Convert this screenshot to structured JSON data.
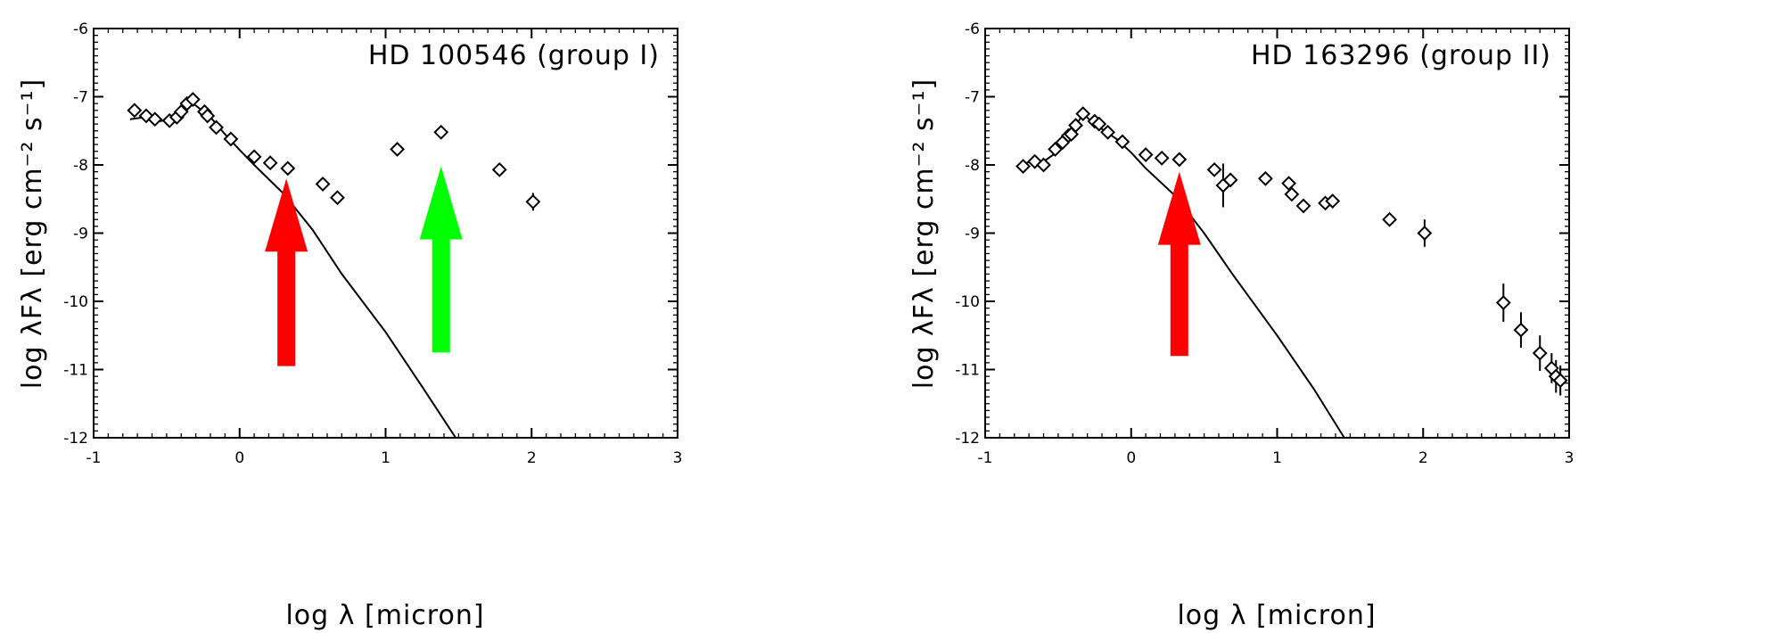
{
  "chart_data": [
    {
      "type": "scatter",
      "title": "HD 100546 (group I)",
      "xlabel": "log λ [micron]",
      "ylabel": "log λFλ [erg cm⁻² s⁻¹]",
      "xlim": [
        -1,
        3
      ],
      "ylim": [
        -12,
        -6
      ],
      "x_ticks": [
        -1,
        0,
        1,
        2,
        3
      ],
      "y_ticks": [
        -12,
        -11,
        -10,
        -9,
        -8,
        -7,
        -6
      ],
      "x_tick_labels": [
        "-1",
        "0",
        "1",
        "2",
        "3"
      ],
      "y_tick_labels": [
        "-12",
        "-11",
        "-10",
        "-9",
        "-8",
        "-7",
        "-6"
      ],
      "points": [
        {
          "x": -0.72,
          "y": -7.2
        },
        {
          "x": -0.64,
          "y": -7.28
        },
        {
          "x": -0.58,
          "y": -7.33
        },
        {
          "x": -0.48,
          "y": -7.35
        },
        {
          "x": -0.43,
          "y": -7.3
        },
        {
          "x": -0.4,
          "y": -7.22
        },
        {
          "x": -0.36,
          "y": -7.1
        },
        {
          "x": -0.32,
          "y": -7.04
        },
        {
          "x": -0.24,
          "y": -7.22
        },
        {
          "x": -0.22,
          "y": -7.28
        },
        {
          "x": -0.16,
          "y": -7.45
        },
        {
          "x": -0.06,
          "y": -7.62
        },
        {
          "x": 0.1,
          "y": -7.88
        },
        {
          "x": 0.21,
          "y": -7.97
        },
        {
          "x": 0.33,
          "y": -8.05
        },
        {
          "x": 0.57,
          "y": -8.28
        },
        {
          "x": 0.67,
          "y": -8.48
        },
        {
          "x": 1.08,
          "y": -7.77
        },
        {
          "x": 1.38,
          "y": -7.52
        },
        {
          "x": 1.78,
          "y": -8.07
        },
        {
          "x": 2.01,
          "y": -8.54,
          "yerr": 0.13
        }
      ],
      "model_curve": [
        [
          -0.75,
          -7.33
        ],
        [
          -0.65,
          -7.3
        ],
        [
          -0.58,
          -7.37
        ],
        [
          -0.5,
          -7.34
        ],
        [
          -0.45,
          -7.28
        ],
        [
          -0.4,
          -7.2
        ],
        [
          -0.35,
          -7.07
        ],
        [
          -0.3,
          -7.13
        ],
        [
          -0.2,
          -7.3
        ],
        [
          -0.1,
          -7.55
        ],
        [
          0.0,
          -7.78
        ],
        [
          0.1,
          -8.0
        ],
        [
          0.3,
          -8.42
        ],
        [
          0.5,
          -8.95
        ],
        [
          0.7,
          -9.6
        ],
        [
          1.0,
          -10.45
        ],
        [
          1.25,
          -11.25
        ],
        [
          1.48,
          -12.0
        ]
      ],
      "annotations": [
        {
          "type": "arrow",
          "color": "#ff0000",
          "x": 0.32,
          "y_from": -10.95,
          "y_to": -8.2
        },
        {
          "type": "arrow",
          "color": "#00ff00",
          "x": 1.38,
          "y_from": -10.75,
          "y_to": -8.02
        }
      ]
    },
    {
      "type": "scatter",
      "title": "HD 163296 (group II)",
      "xlabel": "log λ [micron]",
      "ylabel": "log λFλ [erg cm⁻² s⁻¹]",
      "xlim": [
        -1,
        3
      ],
      "ylim": [
        -12,
        -6
      ],
      "x_ticks": [
        -1,
        0,
        1,
        2,
        3
      ],
      "y_ticks": [
        -12,
        -11,
        -10,
        -9,
        -8,
        -7,
        -6
      ],
      "x_tick_labels": [
        "-1",
        "0",
        "1",
        "2",
        "3"
      ],
      "y_tick_labels": [
        "-12",
        "-11",
        "-10",
        "-9",
        "-8",
        "-7",
        "-6"
      ],
      "points": [
        {
          "x": -0.74,
          "y": -8.02
        },
        {
          "x": -0.66,
          "y": -7.95
        },
        {
          "x": -0.6,
          "y": -8.0
        },
        {
          "x": -0.52,
          "y": -7.77
        },
        {
          "x": -0.47,
          "y": -7.67
        },
        {
          "x": -0.43,
          "y": -7.57
        },
        {
          "x": -0.41,
          "y": -7.55
        },
        {
          "x": -0.38,
          "y": -7.42
        },
        {
          "x": -0.33,
          "y": -7.25
        },
        {
          "x": -0.25,
          "y": -7.36
        },
        {
          "x": -0.22,
          "y": -7.4
        },
        {
          "x": -0.16,
          "y": -7.52
        },
        {
          "x": -0.06,
          "y": -7.66
        },
        {
          "x": 0.1,
          "y": -7.85
        },
        {
          "x": 0.21,
          "y": -7.9
        },
        {
          "x": 0.33,
          "y": -7.92
        },
        {
          "x": 0.57,
          "y": -8.07
        },
        {
          "x": 0.63,
          "y": -8.3,
          "yerr": 0.32
        },
        {
          "x": 0.68,
          "y": -8.22
        },
        {
          "x": 0.92,
          "y": -8.2
        },
        {
          "x": 1.08,
          "y": -8.27
        },
        {
          "x": 1.1,
          "y": -8.43
        },
        {
          "x": 1.18,
          "y": -8.6
        },
        {
          "x": 1.33,
          "y": -8.56
        },
        {
          "x": 1.38,
          "y": -8.53
        },
        {
          "x": 1.77,
          "y": -8.8
        },
        {
          "x": 2.01,
          "y": -9.0,
          "yerr": 0.2
        },
        {
          "x": 2.55,
          "y": -10.02,
          "yerr": 0.28
        },
        {
          "x": 2.67,
          "y": -10.42,
          "yerr": 0.26
        },
        {
          "x": 2.8,
          "y": -10.76,
          "yerr": 0.26
        },
        {
          "x": 2.88,
          "y": -10.98,
          "yerr": 0.22
        },
        {
          "x": 2.91,
          "y": -11.1,
          "yerr": 0.24
        },
        {
          "x": 2.94,
          "y": -11.16,
          "yerr": 0.22
        }
      ],
      "model_curve": [
        [
          -0.75,
          -8.0
        ],
        [
          -0.66,
          -7.92
        ],
        [
          -0.6,
          -7.95
        ],
        [
          -0.5,
          -7.8
        ],
        [
          -0.4,
          -7.5
        ],
        [
          -0.33,
          -7.25
        ],
        [
          -0.25,
          -7.4
        ],
        [
          -0.1,
          -7.62
        ],
        [
          0.0,
          -7.82
        ],
        [
          0.1,
          -8.05
        ],
        [
          0.3,
          -8.45
        ],
        [
          0.5,
          -9.0
        ],
        [
          0.7,
          -9.62
        ],
        [
          1.0,
          -10.5
        ],
        [
          1.25,
          -11.28
        ],
        [
          1.46,
          -12.0
        ]
      ],
      "annotations": [
        {
          "type": "arrow",
          "color": "#ff0000",
          "x": 0.33,
          "y_from": -10.8,
          "y_to": -8.1
        }
      ]
    }
  ]
}
